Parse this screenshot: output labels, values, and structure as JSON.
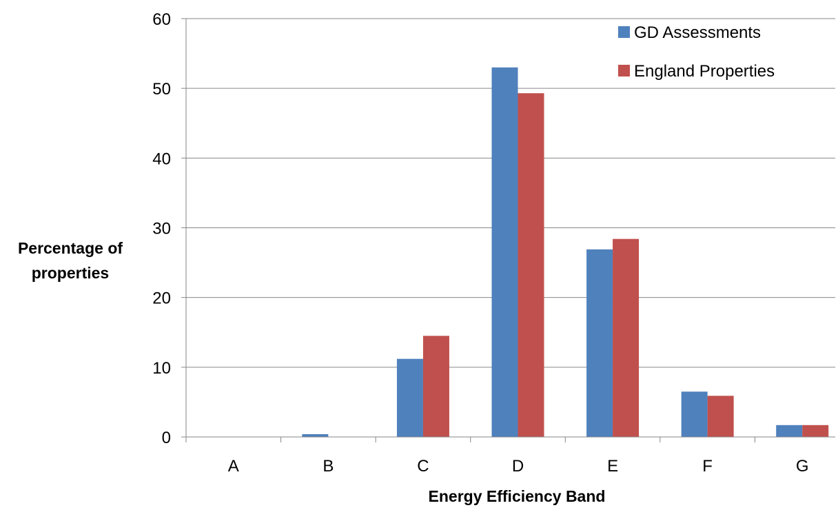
{
  "chart_data": {
    "type": "bar",
    "title": "",
    "xlabel": "Energy Efficiency Band",
    "ylabel_lines": [
      "Percentage of",
      "properties"
    ],
    "categories": [
      "A",
      "B",
      "C",
      "D",
      "E",
      "F",
      "G"
    ],
    "series": [
      {
        "name": "GD Assessments",
        "color": "#4F81BD",
        "values": [
          0,
          0.4,
          11.2,
          53.0,
          26.9,
          6.5,
          1.7
        ]
      },
      {
        "name": "England Properties",
        "color": "#C0504D",
        "values": [
          0,
          0,
          14.5,
          49.3,
          28.4,
          5.9,
          1.7
        ]
      }
    ],
    "ylim": [
      0,
      60
    ],
    "yticks": [
      0,
      10,
      20,
      30,
      40,
      50,
      60
    ],
    "grid": true,
    "legend_position": "top-right"
  }
}
